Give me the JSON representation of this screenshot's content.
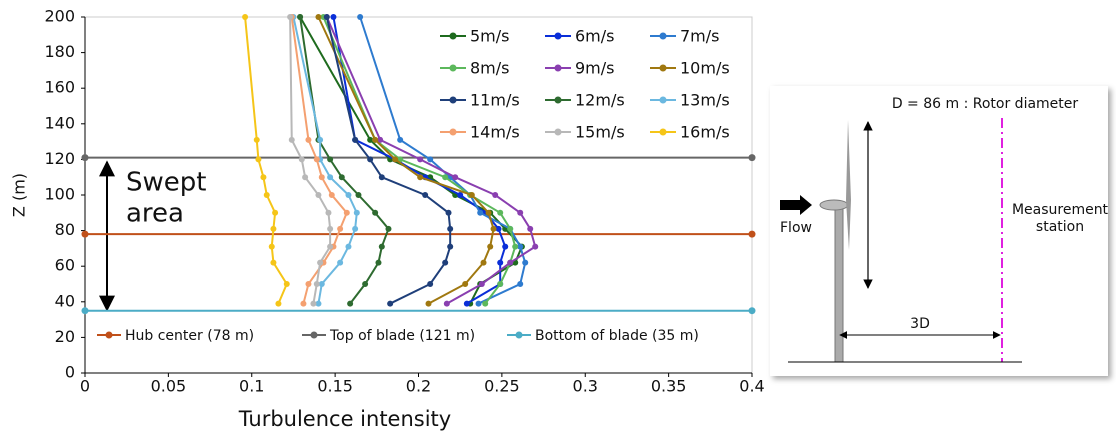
{
  "chart_data": {
    "type": "line",
    "x_label": "Turbulence intensity",
    "y_label": "Z (m)",
    "xlim": [
      0,
      0.4
    ],
    "xticks": [
      0,
      0.05,
      0.1,
      0.15,
      0.2,
      0.25,
      0.3,
      0.35,
      0.4
    ],
    "ylim": [
      0,
      200
    ],
    "yticks": [
      0,
      20,
      40,
      60,
      80,
      100,
      120,
      140,
      160,
      180,
      200
    ],
    "y": [
      39,
      50,
      62,
      71,
      81,
      90,
      100,
      110,
      120,
      131,
      200
    ],
    "series": [
      {
        "name": "5m/s",
        "color": "#1e6b1e",
        "x": [
          0.231,
          0.237,
          0.258,
          0.262,
          0.252,
          0.243,
          0.222,
          0.207,
          0.183,
          0.171,
          0.129
        ]
      },
      {
        "name": "6m/s",
        "color": "#0a2ed8",
        "x": [
          0.229,
          0.249,
          0.249,
          0.252,
          0.248,
          0.24,
          0.225,
          0.204,
          0.186,
          0.162,
          0.149
        ]
      },
      {
        "name": "7m/s",
        "color": "#2e7bcf",
        "x": [
          0.236,
          0.261,
          0.264,
          0.261,
          0.255,
          0.237,
          0.231,
          0.219,
          0.207,
          0.189,
          0.165
        ]
      },
      {
        "name": "8m/s",
        "color": "#5cb85c",
        "x": [
          0.24,
          0.249,
          0.255,
          0.258,
          0.255,
          0.249,
          0.231,
          0.216,
          0.189,
          0.174,
          0.143
        ]
      },
      {
        "name": "9m/s",
        "color": "#8a3fb0",
        "x": [
          0.217,
          0.238,
          0.255,
          0.27,
          0.267,
          0.261,
          0.246,
          0.222,
          0.201,
          0.177,
          0.145
        ]
      },
      {
        "name": "10m/s",
        "color": "#a07810",
        "x": [
          0.206,
          0.228,
          0.239,
          0.243,
          0.245,
          0.242,
          0.232,
          0.201,
          0.186,
          0.174,
          0.14
        ]
      },
      {
        "name": "11m/s",
        "color": "#1f3f7a",
        "x": [
          0.183,
          0.207,
          0.216,
          0.219,
          0.219,
          0.218,
          0.204,
          0.178,
          0.171,
          0.162,
          0.145
        ]
      },
      {
        "name": "12m/s",
        "color": "#2e6b30",
        "x": [
          0.159,
          0.168,
          0.176,
          0.178,
          0.182,
          0.174,
          0.164,
          0.154,
          0.147,
          0.14,
          0.129
        ]
      },
      {
        "name": "13m/s",
        "color": "#6bb8e0",
        "x": [
          0.14,
          0.142,
          0.153,
          0.158,
          0.162,
          0.163,
          0.158,
          0.147,
          0.141,
          0.141,
          0.125
        ]
      },
      {
        "name": "14m/s",
        "color": "#f4a070",
        "x": [
          0.131,
          0.134,
          0.143,
          0.149,
          0.153,
          0.157,
          0.148,
          0.142,
          0.139,
          0.134,
          0.124
        ]
      },
      {
        "name": "15m/s",
        "color": "#b8b8b8",
        "x": [
          0.137,
          0.139,
          0.141,
          0.147,
          0.147,
          0.146,
          0.14,
          0.132,
          0.13,
          0.124,
          0.123
        ]
      },
      {
        "name": "16m/s",
        "color": "#f5c518",
        "x": [
          0.116,
          0.121,
          0.113,
          0.112,
          0.113,
          0.114,
          0.109,
          0.107,
          0.104,
          0.103,
          0.096
        ]
      }
    ],
    "reference_lines": [
      {
        "name": "Hub center (78 m)",
        "value": 78,
        "color": "#c0501a"
      },
      {
        "name": "Top of blade (121 m)",
        "value": 121,
        "color": "#666666"
      },
      {
        "name": "Bottom of blade (35 m)",
        "value": 35,
        "color": "#4bacc6"
      }
    ],
    "annotation": [
      "Swept",
      "area"
    ]
  },
  "diagram": {
    "rotor": "D = 86 m : Rotor diameter",
    "flow": "Flow",
    "measurement": [
      "Measurement",
      "station"
    ],
    "distance": "3D"
  }
}
